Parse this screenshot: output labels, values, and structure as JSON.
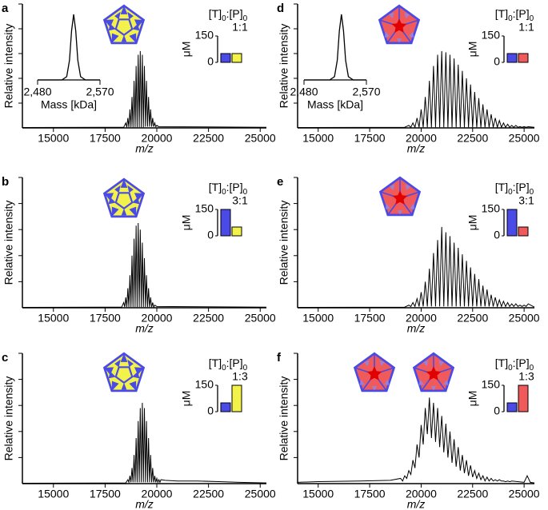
{
  "chart_data": [
    {
      "type": "line",
      "panel": "a",
      "ylabel": "Relative intensity",
      "xlabel": "m/z",
      "color": "#000000",
      "xlim": [
        13500,
        25300
      ],
      "xticks": [
        15000,
        17500,
        20000,
        22500,
        25000
      ],
      "ylim": [
        0,
        1
      ],
      "yticks": [
        0.2,
        0.4,
        0.6,
        0.8,
        1
      ],
      "x": [
        13500,
        18400,
        18500,
        18550,
        18600,
        18650,
        18700,
        18750,
        18800,
        18850,
        18900,
        18950,
        19000,
        19050,
        19100,
        19150,
        19200,
        19250,
        19300,
        19350,
        19400,
        19450,
        19500,
        19550,
        19600,
        19650,
        19700,
        19750,
        19800,
        19850,
        19900,
        19950,
        20000,
        20100,
        25300
      ],
      "values": [
        0.003,
        0.005,
        0.04,
        0.005,
        0.08,
        0.005,
        0.15,
        0.005,
        0.25,
        0.005,
        0.38,
        0.005,
        0.5,
        0.005,
        0.59,
        0.005,
        0.62,
        0.005,
        0.59,
        0.005,
        0.5,
        0.01,
        0.38,
        0.01,
        0.25,
        0.01,
        0.15,
        0.01,
        0.08,
        0.01,
        0.04,
        0.01,
        0.02,
        0.01,
        0.005
      ],
      "mass_inset": {
        "xlabel": "Mass [kDa]",
        "xlim": [
          2480,
          2570
        ],
        "xticks": [
          {
            "value": 2480,
            "label": "2,480"
          },
          {
            "value": 2570,
            "label": "2,570"
          }
        ],
        "ylim": [
          0,
          1
        ],
        "x": [
          2480,
          2515,
          2522,
          2526,
          2529,
          2532,
          2535,
          2538,
          2542,
          2549,
          2570
        ],
        "values": [
          0,
          0,
          0.05,
          0.3,
          0.75,
          1,
          0.75,
          0.3,
          0.05,
          0,
          0
        ]
      },
      "ratio_inset": {
        "title": [
          "[T]",
          "0",
          ":[P]",
          "0"
        ],
        "ratio": "1:1",
        "ylabel": "μM",
        "ylim": [
          0,
          150
        ],
        "yticks": [
          0,
          150
        ],
        "values": [
          50,
          50
        ],
        "colors": [
          "#4a4ae6",
          "#f2f24a"
        ]
      }
    },
    {
      "type": "line",
      "panel": "b",
      "ylabel": "Relative intensity",
      "xlabel": "m/z",
      "color": "#000000",
      "xlim": [
        13500,
        25300
      ],
      "xticks": [
        15000,
        17500,
        20000,
        22500,
        25000
      ],
      "ylim": [
        0,
        1
      ],
      "yticks": [
        0.2,
        0.4,
        0.6,
        0.8,
        1
      ],
      "x": [
        13500,
        18300,
        18400,
        18450,
        18500,
        18550,
        18600,
        18650,
        18700,
        18750,
        18800,
        18850,
        18900,
        18950,
        19000,
        19050,
        19100,
        19150,
        19200,
        19250,
        19300,
        19350,
        19400,
        19450,
        19500,
        19550,
        19600,
        19650,
        19700,
        19750,
        19800,
        19850,
        19900,
        20000,
        25300
      ],
      "values": [
        0.003,
        0.005,
        0.04,
        0.005,
        0.08,
        0.005,
        0.15,
        0.005,
        0.25,
        0.005,
        0.4,
        0.005,
        0.53,
        0.005,
        0.63,
        0.005,
        0.65,
        0.005,
        0.6,
        0.005,
        0.5,
        0.005,
        0.38,
        0.005,
        0.25,
        0.005,
        0.15,
        0.005,
        0.08,
        0.005,
        0.04,
        0.005,
        0.02,
        0.01,
        0.005
      ],
      "ratio_inset": {
        "title": [
          "[T]",
          "0",
          ":[P]",
          "0"
        ],
        "ratio": "3:1",
        "ylabel": "μM",
        "ylim": [
          0,
          150
        ],
        "yticks": [
          0,
          150
        ],
        "values": [
          150,
          50
        ],
        "colors": [
          "#4a4ae6",
          "#f2f24a"
        ]
      }
    },
    {
      "type": "line",
      "panel": "c",
      "ylabel": "Relative intensity",
      "xlabel": "m/z",
      "color": "#000000",
      "xlim": [
        13500,
        25300
      ],
      "xticks": [
        15000,
        17500,
        20000,
        22500,
        25000
      ],
      "ylim": [
        0,
        1
      ],
      "yticks": [
        0.2,
        0.4,
        0.6,
        0.8,
        1
      ],
      "x": [
        13500,
        18500,
        18600,
        18650,
        18700,
        18750,
        18800,
        18850,
        18900,
        18950,
        19000,
        19050,
        19100,
        19150,
        19200,
        19250,
        19300,
        19350,
        19400,
        19450,
        19500,
        19550,
        19600,
        19650,
        19700,
        19750,
        19800,
        19850,
        19900,
        19950,
        20000,
        20050,
        20100,
        20150,
        20200,
        20400,
        21000,
        22000,
        23000,
        24000,
        25300
      ],
      "values": [
        0.003,
        0.005,
        0.03,
        0.01,
        0.06,
        0.01,
        0.12,
        0.01,
        0.22,
        0.01,
        0.35,
        0.01,
        0.48,
        0.01,
        0.58,
        0.01,
        0.62,
        0.01,
        0.58,
        0.01,
        0.48,
        0.01,
        0.35,
        0.01,
        0.22,
        0.01,
        0.12,
        0.01,
        0.06,
        0.01,
        0.04,
        0.01,
        0.03,
        0.01,
        0.03,
        0.025,
        0.02,
        0.02,
        0.015,
        0.01,
        0.005
      ],
      "ratio_inset": {
        "title": [
          "[T]",
          "0",
          ":[P]",
          "0"
        ],
        "ratio": "1:3",
        "ylabel": "μM",
        "ylim": [
          0,
          150
        ],
        "yticks": [
          0,
          150
        ],
        "values": [
          50,
          150
        ],
        "colors": [
          "#4a4ae6",
          "#f2f24a"
        ]
      }
    },
    {
      "type": "line",
      "panel": "d",
      "ylabel": "Relative intensity",
      "xlabel": "m/z",
      "color": "#000000",
      "xlim": [
        14000,
        25500
      ],
      "xticks": [
        15000,
        17500,
        20000,
        22500,
        25000
      ],
      "ylim": [
        0,
        1
      ],
      "yticks": [
        0.2,
        0.4,
        0.6,
        0.8,
        1
      ],
      "x": [
        14000,
        19200,
        19400,
        19500,
        19600,
        19700,
        19800,
        19900,
        20000,
        20100,
        20200,
        20300,
        20400,
        20500,
        20600,
        20700,
        20800,
        20900,
        21000,
        21100,
        21200,
        21300,
        21400,
        21500,
        21600,
        21700,
        21800,
        21900,
        22000,
        22100,
        22200,
        22300,
        22400,
        22500,
        22600,
        22700,
        22800,
        22900,
        23000,
        23100,
        23200,
        23300,
        23400,
        23500,
        23600,
        23700,
        23800,
        23900,
        24000,
        24100,
        24200,
        24300,
        24400,
        24500,
        24600,
        24700,
        24800,
        24900,
        25000,
        25100,
        25200,
        25500
      ],
      "values": [
        0.003,
        0.005,
        0.02,
        0.005,
        0.04,
        0.005,
        0.08,
        0.005,
        0.15,
        0.005,
        0.25,
        0.005,
        0.38,
        0.005,
        0.5,
        0.005,
        0.59,
        0.005,
        0.62,
        0.005,
        0.61,
        0.005,
        0.59,
        0.005,
        0.56,
        0.005,
        0.51,
        0.005,
        0.46,
        0.005,
        0.4,
        0.005,
        0.35,
        0.005,
        0.29,
        0.005,
        0.24,
        0.005,
        0.19,
        0.005,
        0.15,
        0.005,
        0.11,
        0.005,
        0.08,
        0.005,
        0.06,
        0.005,
        0.04,
        0.005,
        0.03,
        0.005,
        0.02,
        0.005,
        0.02,
        0.005,
        0.01,
        0.005,
        0.01,
        0.005,
        0.01,
        0.005
      ],
      "mass_inset": {
        "xlabel": "Mass [kDa]",
        "xlim": [
          2480,
          2570
        ],
        "xticks": [
          {
            "value": 2480,
            "label": "2,480"
          },
          {
            "value": 2570,
            "label": "2,570"
          }
        ],
        "ylim": [
          0,
          1
        ],
        "x": [
          2480,
          2517,
          2524,
          2528,
          2531,
          2534,
          2537,
          2540,
          2544,
          2551,
          2570
        ],
        "values": [
          0,
          0,
          0.05,
          0.3,
          0.75,
          1,
          0.75,
          0.3,
          0.05,
          0,
          0
        ]
      },
      "ratio_inset": {
        "title": [
          "[T]",
          "0",
          ":[P]",
          "0"
        ],
        "ratio": "1:1",
        "ylabel": "μM",
        "ylim": [
          0,
          150
        ],
        "yticks": [
          0,
          150
        ],
        "values": [
          50,
          50
        ],
        "colors": [
          "#4a4ae6",
          "#f05a5a"
        ]
      }
    },
    {
      "type": "line",
      "panel": "e",
      "ylabel": "Relative intensity",
      "xlabel": "m/z",
      "color": "#000000",
      "xlim": [
        14000,
        25500
      ],
      "xticks": [
        15000,
        17500,
        20000,
        22500,
        25000
      ],
      "ylim": [
        0,
        1
      ],
      "yticks": [
        0.2,
        0.4,
        0.6,
        0.8,
        1
      ],
      "x": [
        14000,
        19200,
        19400,
        19500,
        19600,
        19700,
        19800,
        19900,
        20000,
        20100,
        20200,
        20300,
        20400,
        20500,
        20600,
        20700,
        20800,
        20900,
        21000,
        21100,
        21200,
        21300,
        21400,
        21500,
        21600,
        21700,
        21800,
        21900,
        22000,
        22100,
        22200,
        22300,
        22400,
        22500,
        22600,
        22700,
        22800,
        22900,
        23000,
        23100,
        23200,
        23300,
        23400,
        23500,
        23600,
        23700,
        23800,
        23900,
        24000,
        24100,
        24200,
        24300,
        24400,
        24500,
        24600,
        24700,
        24800,
        24900,
        25000,
        25100,
        25200,
        25500
      ],
      "values": [
        0.003,
        0.005,
        0.02,
        0.01,
        0.04,
        0.01,
        0.07,
        0.01,
        0.12,
        0.01,
        0.2,
        0.01,
        0.3,
        0.01,
        0.42,
        0.01,
        0.52,
        0.01,
        0.62,
        0.01,
        0.58,
        0.01,
        0.55,
        0.01,
        0.5,
        0.01,
        0.46,
        0.01,
        0.41,
        0.01,
        0.36,
        0.01,
        0.31,
        0.01,
        0.26,
        0.01,
        0.22,
        0.01,
        0.17,
        0.01,
        0.14,
        0.01,
        0.1,
        0.01,
        0.08,
        0.01,
        0.06,
        0.01,
        0.05,
        0.01,
        0.04,
        0.01,
        0.03,
        0.01,
        0.03,
        0.01,
        0.02,
        0.01,
        0.02,
        0.01,
        0.03,
        0.005
      ],
      "ratio_inset": {
        "title": [
          "[T]",
          "0",
          ":[P]",
          "0"
        ],
        "ratio": "3:1",
        "ylabel": "μM",
        "ylim": [
          0,
          150
        ],
        "yticks": [
          0,
          150
        ],
        "values": [
          150,
          50
        ],
        "colors": [
          "#4a4ae6",
          "#f05a5a"
        ]
      }
    },
    {
      "type": "line",
      "panel": "f",
      "ylabel": "Relative intensity",
      "xlabel": "m/z",
      "color": "#000000",
      "xlim": [
        14000,
        25500
      ],
      "xticks": [
        15000,
        17500,
        20000,
        22500,
        25000
      ],
      "ylim": [
        0,
        1
      ],
      "yticks": [
        0.2,
        0.4,
        0.6,
        0.8,
        1
      ],
      "x": [
        14000,
        15000,
        17000,
        18500,
        19000,
        19100,
        19200,
        19300,
        19400,
        19500,
        19600,
        19700,
        19800,
        19900,
        20000,
        20100,
        20200,
        20300,
        20400,
        20500,
        20600,
        20700,
        20800,
        20900,
        21000,
        21100,
        21200,
        21300,
        21400,
        21500,
        21600,
        21700,
        21800,
        21900,
        22000,
        22100,
        22200,
        22300,
        22400,
        22500,
        22600,
        22700,
        22800,
        22900,
        23000,
        23100,
        23200,
        23300,
        23400,
        23500,
        23600,
        23700,
        23800,
        23900,
        24000,
        24100,
        24200,
        24300,
        24400,
        25000,
        25150,
        25300,
        25500
      ],
      "values": [
        0.01,
        0.015,
        0.02,
        0.025,
        0.04,
        0.02,
        0.06,
        0.04,
        0.1,
        0.07,
        0.18,
        0.12,
        0.3,
        0.2,
        0.45,
        0.3,
        0.58,
        0.38,
        0.66,
        0.35,
        0.62,
        0.32,
        0.58,
        0.28,
        0.52,
        0.24,
        0.46,
        0.2,
        0.4,
        0.16,
        0.34,
        0.13,
        0.28,
        0.1,
        0.22,
        0.08,
        0.18,
        0.06,
        0.14,
        0.05,
        0.1,
        0.04,
        0.08,
        0.03,
        0.06,
        0.02,
        0.05,
        0.02,
        0.04,
        0.02,
        0.03,
        0.02,
        0.03,
        0.02,
        0.02,
        0.015,
        0.02,
        0.015,
        0.02,
        0.01,
        0.06,
        0.01,
        0.005
      ],
      "ratio_inset": {
        "title": [
          "[T]",
          "0",
          ":[P]",
          "0"
        ],
        "ratio": "1:3",
        "ylabel": "μM",
        "ylim": [
          0,
          150
        ],
        "yticks": [
          0,
          150
        ],
        "values": [
          50,
          150
        ],
        "colors": [
          "#4a4ae6",
          "#f05a5a"
        ]
      }
    }
  ]
}
